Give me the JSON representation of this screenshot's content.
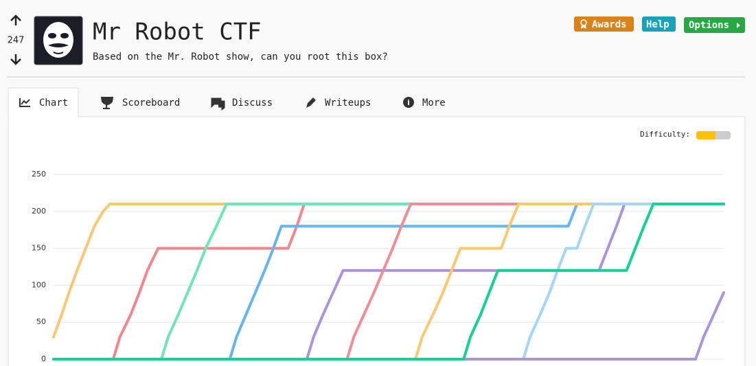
{
  "header": {
    "votes": 247,
    "title": "Mr Robot CTF",
    "subtitle": "Based on the Mr. Robot show, can you root this box?",
    "buttons": [
      "Awards",
      "Help",
      "Options"
    ]
  },
  "tabs": [
    "Chart",
    "Scoreboard",
    "Discuss",
    "Writeups",
    "More"
  ],
  "difficulty_label": "Difficulty:",
  "chart_data": {
    "type": "line",
    "xlim": [
      0,
      100
    ],
    "ylim": [
      0,
      250
    ],
    "yticks": [
      0,
      50,
      100,
      150,
      200,
      250
    ],
    "grid": true,
    "series": [
      {
        "color": "#1fbfa8",
        "x": [
          0,
          61.2
        ],
        "values": [
          0,
          0
        ]
      },
      {
        "color": "#f9c86f",
        "x": [
          0,
          1.2,
          2.3,
          3.5,
          4.8,
          6.1,
          7.4,
          8.4,
          100
        ],
        "values": [
          30,
          60,
          90,
          120,
          150,
          180,
          200,
          210,
          210
        ]
      },
      {
        "color": "#f2868f",
        "x": [
          0,
          8.9,
          9.9,
          11.5,
          12.8,
          14.0,
          15.6,
          35.0,
          36.3,
          37.4,
          100
        ],
        "values": [
          0,
          0,
          30,
          60,
          90,
          120,
          150,
          150,
          180,
          210,
          210
        ]
      },
      {
        "color": "#6ee6b5",
        "x": [
          0,
          16.1,
          17.1,
          18.6,
          20.0,
          21.4,
          22.7,
          24.3,
          25.8,
          100
        ],
        "values": [
          0,
          0,
          30,
          60,
          90,
          120,
          150,
          180,
          210,
          210
        ]
      },
      {
        "color": "#64b5f0",
        "x": [
          0,
          26.3,
          27.3,
          28.7,
          30.1,
          31.5,
          32.8,
          34.0,
          76.8,
          78.1,
          100
        ],
        "values": [
          0,
          0,
          30,
          60,
          90,
          120,
          150,
          180,
          180,
          210,
          210
        ]
      },
      {
        "color": "#ab94dc",
        "x": [
          0,
          37.8,
          38.8,
          40.2,
          41.7,
          43.2,
          81.4,
          82.7,
          84.0,
          85.2,
          100
        ],
        "values": [
          0,
          0,
          30,
          60,
          90,
          120,
          120,
          150,
          180,
          210,
          210
        ]
      },
      {
        "color": "#f08e98",
        "x": [
          0,
          43.8,
          44.8,
          46.3,
          47.8,
          49.2,
          50.6,
          51.9,
          53.3,
          100
        ],
        "values": [
          0,
          0,
          30,
          60,
          90,
          120,
          150,
          180,
          210,
          210
        ]
      },
      {
        "color": "#f9c86f",
        "x": [
          0,
          54.0,
          55.0,
          56.6,
          58.1,
          59.4,
          60.7,
          66.8,
          68.0,
          69.4,
          100
        ],
        "values": [
          0,
          0,
          30,
          60,
          90,
          120,
          150,
          150,
          180,
          210,
          210
        ]
      },
      {
        "color": "#a4d6f7",
        "x": [
          0,
          70.1,
          71.1,
          72.6,
          74.0,
          75.2,
          76.5,
          78.1,
          79.3,
          80.6,
          100
        ],
        "values": [
          0,
          0,
          30,
          60,
          90,
          120,
          150,
          150,
          180,
          210,
          210
        ]
      },
      {
        "color": "#ab94dc",
        "x": [
          0,
          95.8,
          97.0,
          98.5,
          100
        ],
        "values": [
          0,
          0,
          30,
          60,
          90
        ]
      },
      {
        "color": "#12d394",
        "x": [
          0,
          61.2,
          62.2,
          63.7,
          65.0,
          66.3,
          85.5,
          86.8,
          88.1,
          89.5,
          100
        ],
        "values": [
          0,
          0,
          30,
          60,
          90,
          120,
          120,
          150,
          180,
          210,
          210
        ]
      }
    ]
  }
}
